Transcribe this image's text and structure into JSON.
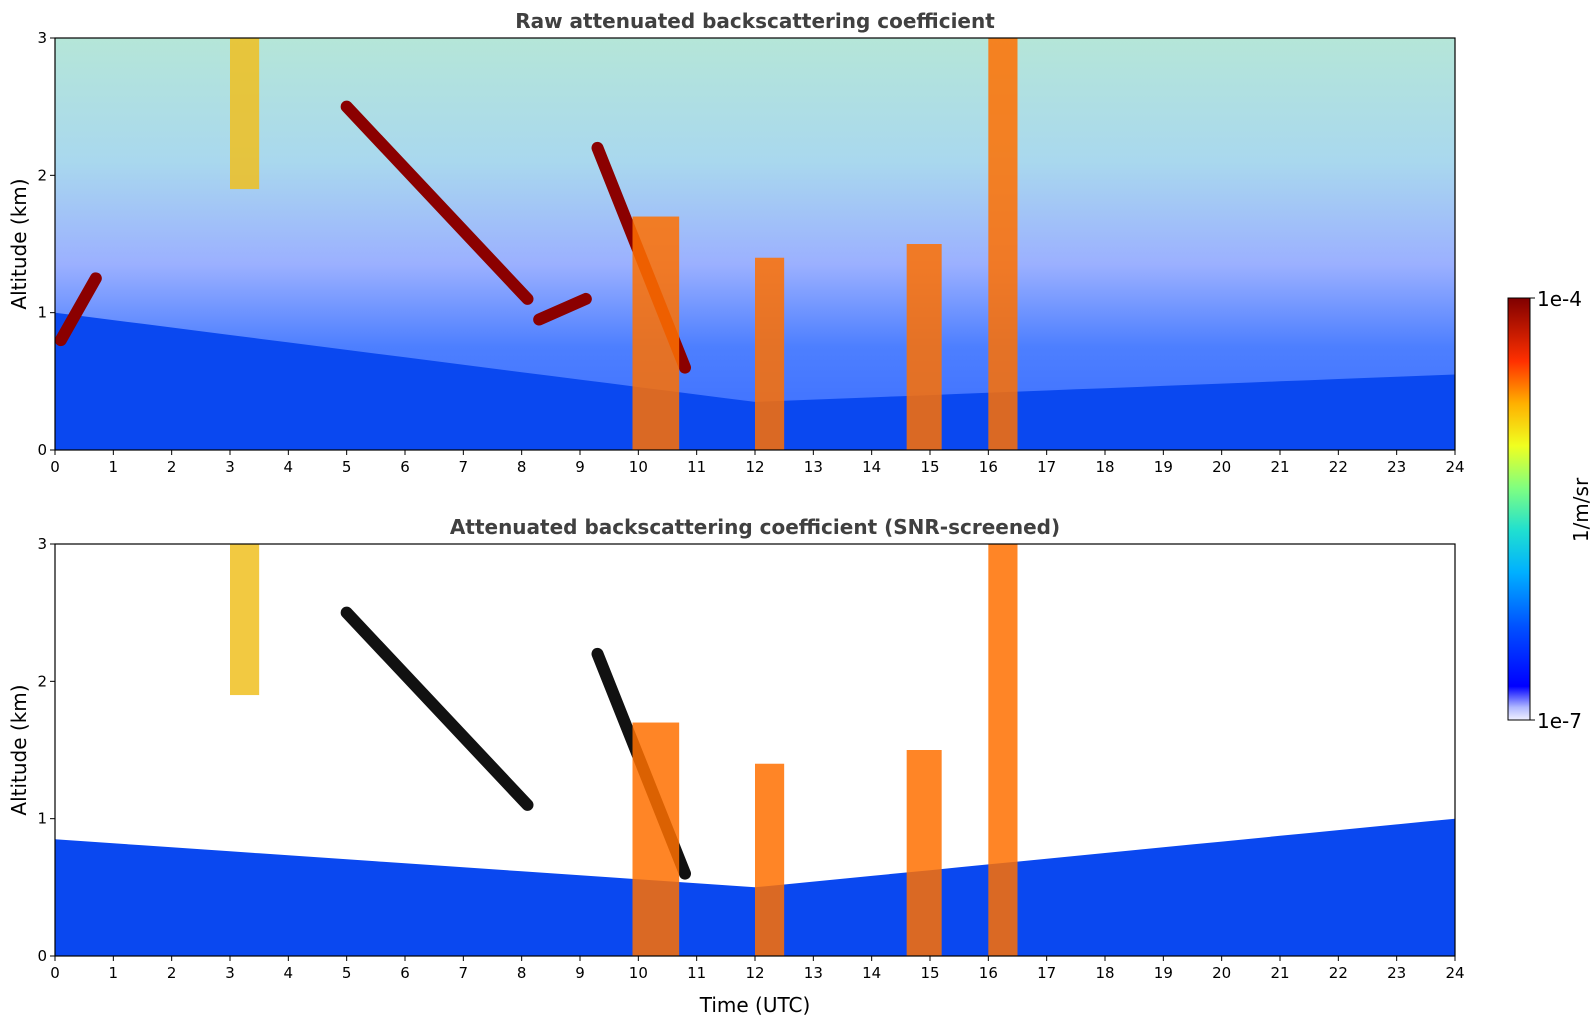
{
  "chart_data": [
    {
      "type": "heatmap",
      "title": "Raw attenuated backscattering coefficient",
      "xlabel": "",
      "ylabel": "Altitude (km)",
      "xlim": [
        0,
        24
      ],
      "ylim": [
        0,
        3
      ],
      "xticks": [
        "0",
        "1",
        "2",
        "3",
        "4",
        "5",
        "6",
        "7",
        "8",
        "9",
        "10",
        "11",
        "12",
        "13",
        "14",
        "15",
        "16",
        "17",
        "18",
        "19",
        "20",
        "21",
        "22",
        "23",
        "24"
      ],
      "yticks": [
        "0",
        "1",
        "2",
        "3"
      ],
      "screened": false,
      "colormap": "jet",
      "background_color": "#ffffff",
      "features": [
        {
          "kind": "boundary_layer",
          "description": "dense low aerosol layer",
          "t": [
            0,
            24
          ],
          "top_km_start": 1.0,
          "top_km_mid": 0.35,
          "top_km_end": 0.55
        },
        {
          "kind": "cloud_layer",
          "t": [
            5.0,
            8.1
          ],
          "alt_km": [
            2.5,
            1.1
          ]
        },
        {
          "kind": "cloud_layer",
          "t": [
            8.3,
            9.1
          ],
          "alt_km": [
            0.95,
            1.1
          ]
        },
        {
          "kind": "cloud_layer",
          "t": [
            9.3,
            10.8
          ],
          "alt_km": [
            2.2,
            0.6
          ]
        },
        {
          "kind": "cloud_layer",
          "t": [
            0.1,
            0.7
          ],
          "alt_km": [
            0.8,
            1.25
          ]
        },
        {
          "kind": "precipitation",
          "t": [
            9.9,
            10.7
          ],
          "alt_km": [
            0,
            1.7
          ]
        },
        {
          "kind": "precipitation",
          "t": [
            12.0,
            12.5
          ],
          "alt_km": [
            0,
            1.4
          ]
        },
        {
          "kind": "precipitation",
          "t": [
            14.6,
            15.2
          ],
          "alt_km": [
            0,
            1.5
          ]
        },
        {
          "kind": "precipitation",
          "t": [
            16.0,
            16.5
          ],
          "alt_km": [
            0,
            3.0
          ]
        },
        {
          "kind": "aerosol_plume",
          "t": [
            3.0,
            3.5
          ],
          "alt_km": [
            1.9,
            3.0
          ]
        }
      ]
    },
    {
      "type": "heatmap",
      "title": "Attenuated backscattering coefficient (SNR-screened)",
      "xlabel": "Time (UTC)",
      "ylabel": "Altitude (km)",
      "xlim": [
        0,
        24
      ],
      "ylim": [
        0,
        3
      ],
      "xticks": [
        "0",
        "1",
        "2",
        "3",
        "4",
        "5",
        "6",
        "7",
        "8",
        "9",
        "10",
        "11",
        "12",
        "13",
        "14",
        "15",
        "16",
        "17",
        "18",
        "19",
        "20",
        "21",
        "22",
        "23",
        "24"
      ],
      "yticks": [
        "0",
        "1",
        "2",
        "3"
      ],
      "screened": true,
      "colormap": "jet",
      "background_color": "#ffffff",
      "features": [
        {
          "kind": "boundary_layer",
          "t": [
            0,
            24
          ],
          "top_km_start": 0.85,
          "top_km_mid": 0.5,
          "top_km_end": 1.0
        },
        {
          "kind": "cloud_layer",
          "t": [
            5.0,
            8.1
          ],
          "alt_km": [
            2.5,
            1.1
          ]
        },
        {
          "kind": "cloud_layer",
          "t": [
            9.3,
            10.8
          ],
          "alt_km": [
            2.2,
            0.6
          ]
        },
        {
          "kind": "precipitation",
          "t": [
            9.9,
            10.7
          ],
          "alt_km": [
            0,
            1.7
          ]
        },
        {
          "kind": "precipitation",
          "t": [
            12.0,
            12.5
          ],
          "alt_km": [
            0,
            1.4
          ]
        },
        {
          "kind": "precipitation",
          "t": [
            14.6,
            15.2
          ],
          "alt_km": [
            0,
            1.5
          ]
        },
        {
          "kind": "precipitation",
          "t": [
            16.0,
            16.5
          ],
          "alt_km": [
            0,
            3.0
          ]
        },
        {
          "kind": "aerosol_plume",
          "t": [
            3.0,
            3.5
          ],
          "alt_km": [
            1.9,
            3.0
          ]
        }
      ]
    }
  ],
  "colorbar": {
    "label": "1/m/sr",
    "max_label": "1e-4",
    "min_label": "1e-7",
    "scale": "log",
    "range": [
      1e-07,
      0.0001
    ]
  }
}
